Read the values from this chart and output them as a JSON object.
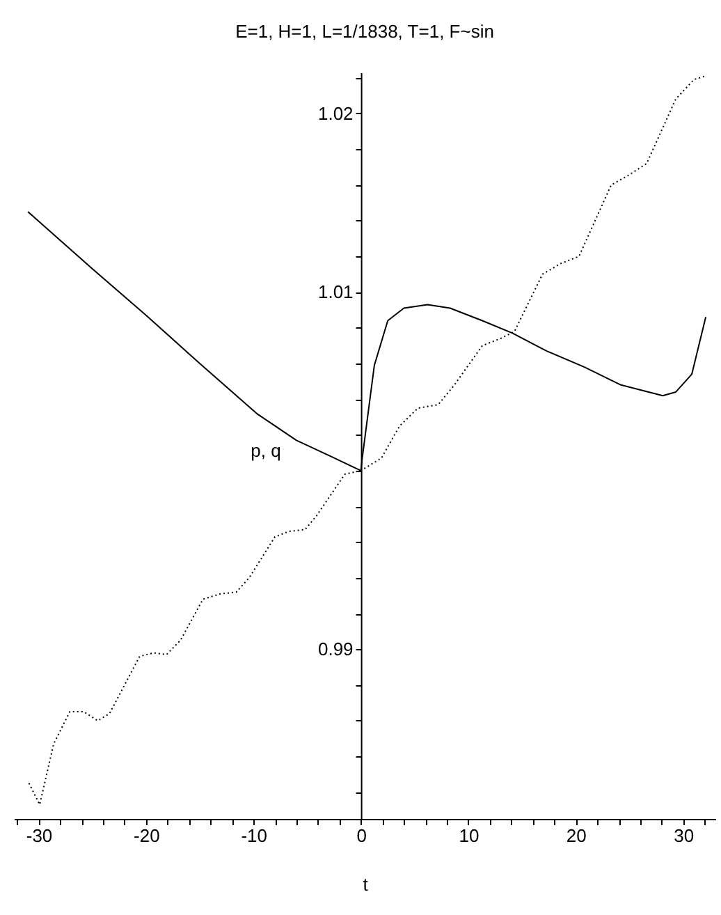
{
  "chart_data": {
    "type": "line",
    "title": "E=1, H=1, L=1/1838, T=1, F~sin",
    "xlabel": "t",
    "ylabel": "p, q",
    "xlim": [
      -32.3,
      33
    ],
    "ylim": [
      0.9805,
      1.0223
    ],
    "xticks": [
      {
        "value": -32,
        "label": null
      },
      -30,
      {
        "value": -28,
        "label": null
      },
      {
        "value": -26,
        "label": null
      },
      {
        "value": -24,
        "label": null
      },
      {
        "value": -22,
        "label": null
      },
      -20,
      {
        "value": -18,
        "label": null
      },
      {
        "value": -16,
        "label": null
      },
      {
        "value": -14,
        "label": null
      },
      {
        "value": -12,
        "label": null
      },
      -10,
      {
        "value": -8,
        "label": null
      },
      {
        "value": -6,
        "label": null
      },
      {
        "value": -4,
        "label": null
      },
      {
        "value": -2,
        "label": null
      },
      0,
      {
        "value": 2,
        "label": null
      },
      {
        "value": 4,
        "label": null
      },
      {
        "value": 6,
        "label": null
      },
      {
        "value": 8,
        "label": null
      },
      10,
      {
        "value": 12,
        "label": null
      },
      {
        "value": 14,
        "label": null
      },
      {
        "value": 16,
        "label": null
      },
      {
        "value": 18,
        "label": null
      },
      20,
      {
        "value": 22,
        "label": null
      },
      {
        "value": 24,
        "label": null
      },
      {
        "value": 26,
        "label": null
      },
      {
        "value": 28,
        "label": null
      },
      30,
      {
        "value": 32,
        "label": null
      }
    ],
    "yticks": [
      {
        "value": 0.982,
        "label": null
      },
      {
        "value": 0.984,
        "label": null
      },
      {
        "value": 0.986,
        "label": null
      },
      {
        "value": 0.988,
        "label": null
      },
      0.99,
      {
        "value": 0.992,
        "label": null
      },
      {
        "value": 0.994,
        "label": null
      },
      {
        "value": 0.996,
        "label": null
      },
      {
        "value": 0.998,
        "label": null
      },
      {
        "value": 1.0,
        "label": null
      },
      {
        "value": 1.002,
        "label": null
      },
      {
        "value": 1.004,
        "label": null
      },
      {
        "value": 1.006,
        "label": null
      },
      {
        "value": 1.008,
        "label": null
      },
      1.01,
      {
        "value": 1.012,
        "label": null
      },
      {
        "value": 1.014,
        "label": null
      },
      {
        "value": 1.016,
        "label": null
      },
      {
        "value": 1.018,
        "label": null
      },
      1.02,
      {
        "value": 1.022,
        "label": null
      }
    ],
    "series": [
      {
        "color": "#000000",
        "line_style": "solid",
        "x": [
          -31,
          -25,
          -20,
          -15,
          -9.7,
          -6,
          -2.8,
          0,
          0.1,
          1.25,
          2.5,
          4.0,
          6.2,
          8.3,
          11.3,
          14.1,
          17.3,
          20.8,
          24.2,
          28.1,
          29.3,
          30.8,
          32.1
        ],
        "values": [
          1.0145,
          1.0113,
          1.0087,
          1.006,
          1.0032,
          1.0017,
          1.0008,
          1.0,
          1.0006,
          1.0059,
          1.0084,
          1.0091,
          1.0093,
          1.0091,
          1.0084,
          1.0077,
          1.0067,
          1.0058,
          1.0048,
          1.0042,
          1.0044,
          1.0054,
          1.0086
        ]
      },
      {
        "color": "#000000",
        "line_style": "dotted",
        "x": [
          -30.9,
          -29.9,
          -28.6,
          -27.1,
          -25.8,
          -24.5,
          -23.4,
          -20.6,
          -19.3,
          -18.1,
          -16.8,
          -14.7,
          -13.1,
          -11.6,
          -10.4,
          -8.0,
          -6.7,
          -5.2,
          -4.1,
          -1.5,
          0,
          1.9,
          3.6,
          5.3,
          7.2,
          8.7,
          11.3,
          13.0,
          14.3,
          16.9,
          18.6,
          20.3,
          23.3,
          24.8,
          26.6,
          29.3,
          31.0,
          32.1
        ],
        "values": [
          0.9825,
          0.9813,
          0.9847,
          0.9865,
          0.9865,
          0.986,
          0.9864,
          0.9896,
          0.9898,
          0.9897,
          0.9905,
          0.9928,
          0.9931,
          0.9932,
          0.994,
          0.9963,
          0.9966,
          0.9967,
          0.9975,
          0.9998,
          1.0,
          1.0007,
          1.0025,
          1.0035,
          1.0037,
          1.0048,
          1.007,
          1.0074,
          1.0078,
          1.011,
          1.0116,
          1.012,
          1.016,
          1.0165,
          1.0172,
          1.0208,
          1.0219,
          1.0221
        ]
      }
    ]
  }
}
